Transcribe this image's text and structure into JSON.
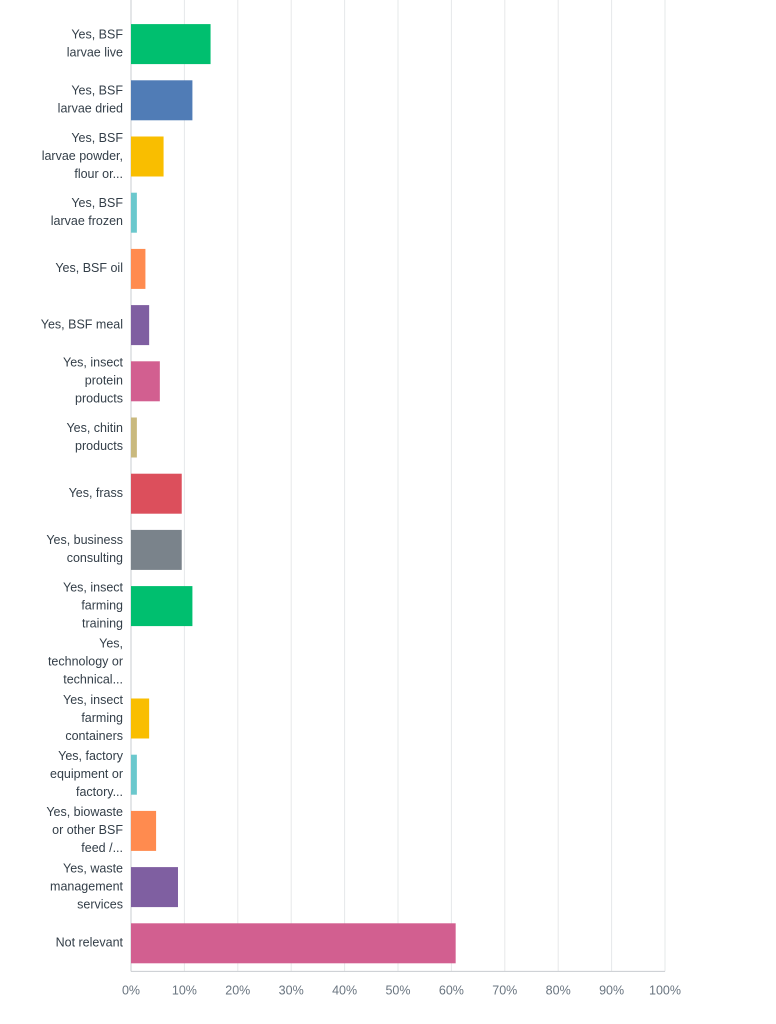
{
  "chart_data": {
    "type": "bar",
    "orientation": "horizontal",
    "title": "",
    "xlabel": "",
    "ylabel": "",
    "xlim": [
      0,
      100
    ],
    "grid": true,
    "categories": [
      [
        "Yes, BSF",
        "larvae live"
      ],
      [
        "Yes, BSF",
        "larvae dried"
      ],
      [
        "Yes, BSF",
        "larvae powder,",
        "flour or..."
      ],
      [
        "Yes, BSF",
        "larvae frozen"
      ],
      [
        "Yes, BSF oil"
      ],
      [
        "Yes, BSF meal"
      ],
      [
        "Yes, insect",
        "protein",
        "products"
      ],
      [
        "Yes, chitin",
        "products"
      ],
      [
        "Yes, frass"
      ],
      [
        "Yes, business",
        "consulting"
      ],
      [
        "Yes, insect",
        "farming",
        "training"
      ],
      [
        "Yes,",
        "technology or",
        "technical..."
      ],
      [
        "Yes, insect",
        "farming",
        "containers"
      ],
      [
        "Yes, factory",
        "equipment or",
        "factory..."
      ],
      [
        "Yes, biowaste",
        "or other BSF",
        "feed /..."
      ],
      [
        "Yes, waste",
        "management",
        "services"
      ],
      [
        "Not relevant"
      ]
    ],
    "values": [
      14.9,
      11.5,
      6.1,
      1.1,
      2.7,
      3.4,
      5.4,
      1.1,
      9.5,
      9.5,
      11.5,
      0,
      3.4,
      1.1,
      4.7,
      8.8,
      60.8
    ],
    "colors": [
      "#00bf6f",
      "#507cb6",
      "#f9be00",
      "#6bc8cd",
      "#ff8b4f",
      "#7f5fa1",
      "#d25f90",
      "#c9b97e",
      "#dc4f5c",
      "#7a838b",
      "#00bf6f",
      "#507cb6",
      "#f9be00",
      "#6bc8cd",
      "#ff8b4f",
      "#7f5fa1",
      "#d25f90"
    ],
    "ticks": [
      "0%",
      "10%",
      "20%",
      "30%",
      "40%",
      "50%",
      "60%",
      "70%",
      "80%",
      "90%",
      "100%"
    ]
  }
}
